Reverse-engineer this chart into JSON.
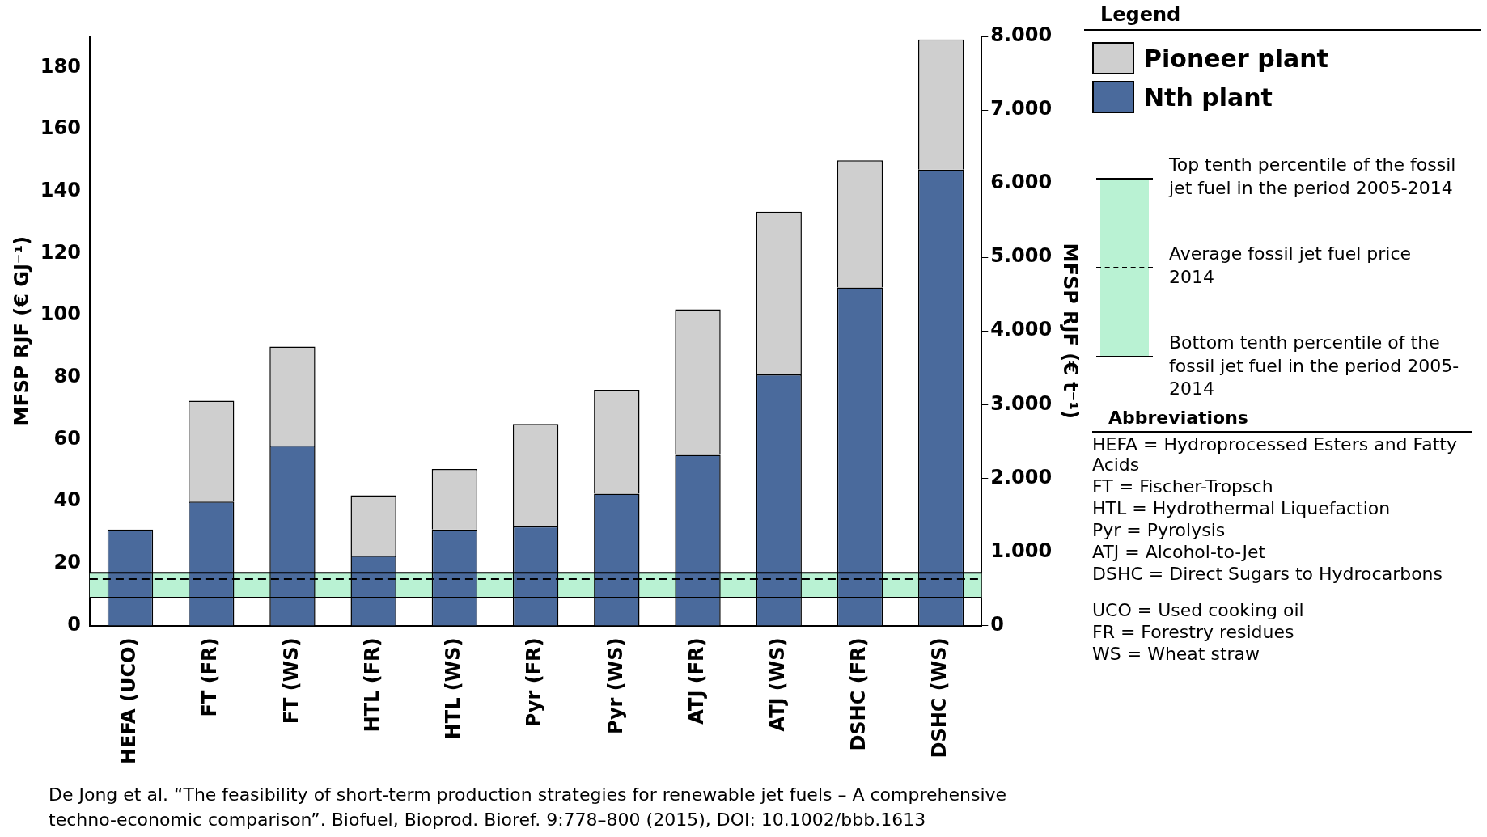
{
  "chart_data": {
    "type": "bar",
    "stacked": true,
    "categories": [
      "HEFA (UCO)",
      "FT (FR)",
      "FT (WS)",
      "HTL (FR)",
      "HTL (WS)",
      "Pyr (FR)",
      "Pyr (WS)",
      "ATJ (FR)",
      "ATJ (WS)",
      "DSHC (FR)",
      "DSHC (WS)"
    ],
    "series": [
      {
        "name": "Nth plant",
        "color": "#4a6a9c",
        "values": [
          31,
          40,
          58,
          22.5,
          31,
          32,
          42.5,
          55,
          81,
          109,
          147
        ]
      },
      {
        "name": "Pioneer plant",
        "color": "#cfcfcf",
        "values": [
          0,
          32.5,
          32,
          19.5,
          19.5,
          33,
          33.5,
          47,
          52.5,
          41,
          42
        ]
      }
    ],
    "ylabel": "MFSP RJF (€ GJ⁻¹)",
    "y2label": "MFSP RJF (€ t⁻¹)",
    "ylim": [
      0,
      190
    ],
    "yticks": [
      0,
      20,
      40,
      60,
      80,
      100,
      120,
      140,
      160,
      180
    ],
    "y2lim": [
      0,
      8000
    ],
    "y2ticks": [
      0,
      {
        "value": 1000,
        "label": "1.000"
      },
      {
        "value": 2000,
        "label": "2.000"
      },
      {
        "value": 3000,
        "label": "3.000"
      },
      {
        "value": 4000,
        "label": "4.000"
      },
      {
        "value": 5000,
        "label": "5.000"
      },
      {
        "value": 6000,
        "label": "6.000"
      },
      {
        "value": 7000,
        "label": "7.000"
      },
      {
        "value": 8000,
        "label": "8.000"
      }
    ],
    "bands": [
      {
        "axis": "y",
        "from": 9,
        "to": 17,
        "color": "#b9f2d3"
      }
    ],
    "ref_lines": [
      {
        "axis": "y",
        "value": 17,
        "label": "Top tenth percentile of the fossil jet fuel in the period 2005-2014",
        "color": "#000000",
        "line_style": "solid"
      },
      {
        "axis": "y",
        "value": 15,
        "label": "Average fossil jet fuel price 2014",
        "color": "#000000",
        "line_style": "dashed"
      },
      {
        "axis": "y",
        "value": 9,
        "label": "Bottom tenth percentile of the fossil jet fuel in the period 2005-2014",
        "color": "#000000",
        "line_style": "solid"
      }
    ],
    "legend": "right",
    "legend_title": "Legend",
    "grid": false,
    "annotations": [
      "Abbreviations",
      "HEFA = Hydroprocessed Esters and Fatty Acids",
      "FT = Fischer-Tropsch",
      "HTL = Hydrothermal Liquefaction",
      "Pyr = Pyrolysis",
      "ATJ = Alcohol-to-Jet",
      "DSHC = Direct Sugars to Hydrocarbons",
      "UCO = Used cooking oil",
      "FR = Forestry residues",
      "WS = Wheat straw",
      "De Jong et al. “The feasibility of short-term production strategies for renewable jet fuels – A comprehensive techno-economic comparison”. Biofuel, Bioprod. Bioref. 9:778–800 (2015), DOI: 10.1002/bbb.1613"
    ]
  }
}
